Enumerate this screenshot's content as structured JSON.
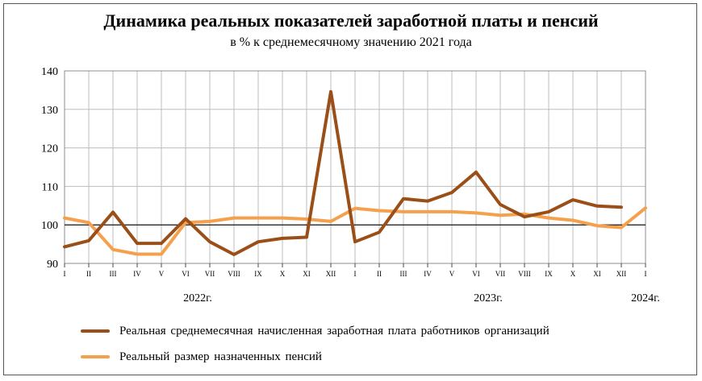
{
  "title": "Динамика реальных показателей заработной платы и пенсий",
  "subtitle": "в % к среднемесячному значению 2021 года",
  "chart_data": {
    "type": "line",
    "x": [
      "I",
      "II",
      "III",
      "IV",
      "V",
      "VI",
      "VII",
      "VIII",
      "IX",
      "X",
      "XI",
      "XII",
      "I",
      "II",
      "III",
      "IV",
      "V",
      "VI",
      "VII",
      "VIII",
      "IX",
      "X",
      "XI",
      "XII",
      "I"
    ],
    "year_labels": [
      {
        "label": "2022г.",
        "index": 5.5
      },
      {
        "label": "2023г.",
        "index": 17.5
      },
      {
        "label": "2024г.",
        "index": 24
      }
    ],
    "ylim": [
      90,
      140
    ],
    "yticks": [
      90,
      100,
      110,
      120,
      130,
      140
    ],
    "reference_line": 100,
    "grid": true,
    "series": [
      {
        "name": "Реальная среднемесячная начисленная заработная плата работников организаций",
        "color": "#9b4f18",
        "values": [
          94.3,
          95.9,
          103.3,
          95.2,
          95.2,
          101.6,
          95.6,
          92.3,
          95.6,
          96.5,
          96.8,
          134.6,
          95.6,
          98.1,
          106.8,
          106.2,
          108.4,
          113.7,
          105.3,
          102.1,
          103.4,
          106.5,
          104.9,
          104.6,
          null
        ]
      },
      {
        "name": "Реальный размер назначенных пенсий",
        "color": "#f5a04d",
        "values": [
          101.8,
          100.6,
          93.6,
          92.4,
          92.4,
          100.6,
          100.9,
          101.8,
          101.8,
          101.8,
          101.5,
          100.9,
          104.3,
          103.7,
          103.4,
          103.4,
          103.4,
          103.1,
          102.5,
          102.8,
          101.8,
          101.2,
          99.8,
          99.3,
          104.4
        ]
      }
    ]
  }
}
